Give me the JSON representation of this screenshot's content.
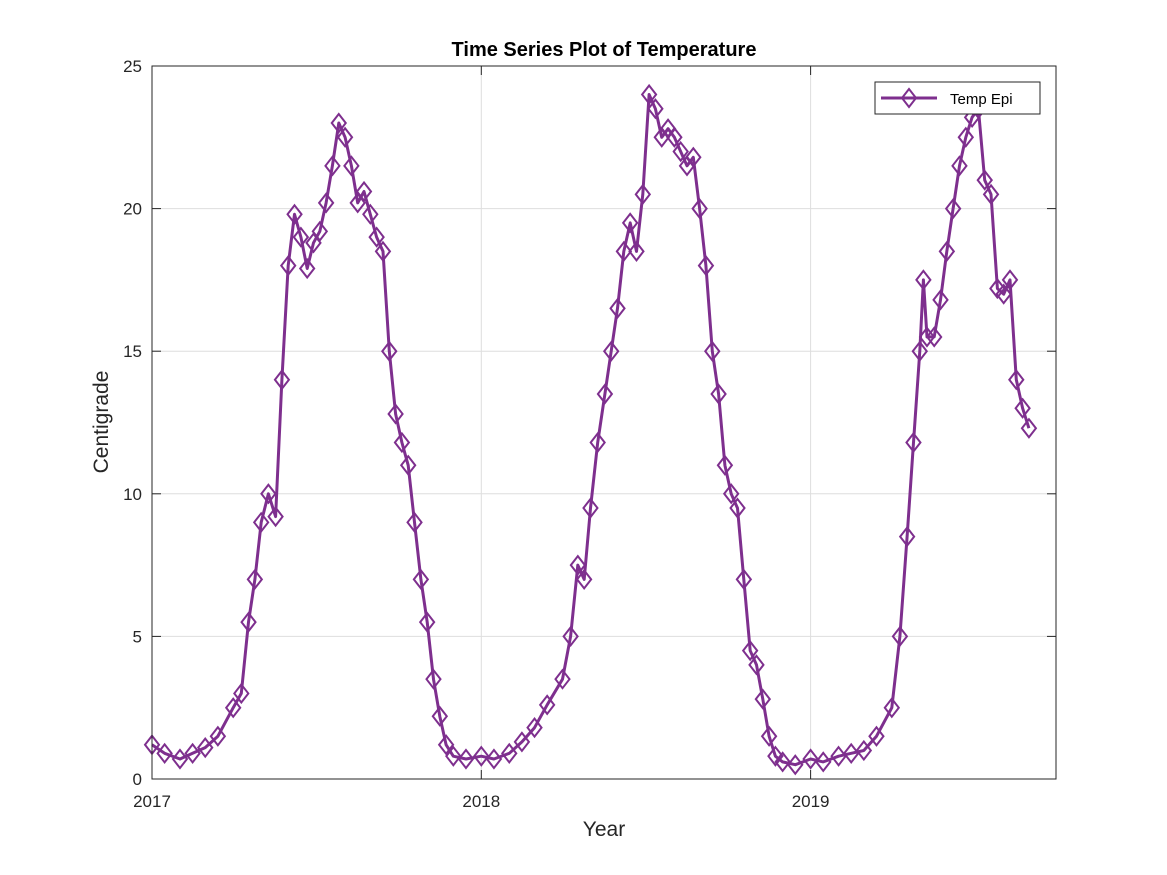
{
  "chart_data": {
    "type": "line",
    "title": "Time Series Plot of Temperature",
    "xlabel": "Year",
    "ylabel": "Centigrade",
    "x_ticks": [
      "2017",
      "2018",
      "2019"
    ],
    "y_ticks": [
      "0",
      "5",
      "10",
      "15",
      "20",
      "25"
    ],
    "xlim": [
      "2017-01-01",
      "2019-09-30"
    ],
    "ylim": [
      0,
      25
    ],
    "grid": true,
    "legend_position": "top-right",
    "marker": "diamond",
    "series": [
      {
        "name": "Temp Epi",
        "color": "#7E2F8E",
        "points": [
          [
            "2017-01-01",
            1.2
          ],
          [
            "2017-01-15",
            0.9
          ],
          [
            "2017-02-01",
            0.7
          ],
          [
            "2017-02-15",
            0.9
          ],
          [
            "2017-03-01",
            1.1
          ],
          [
            "2017-03-15",
            1.5
          ],
          [
            "2017-04-01",
            2.5
          ],
          [
            "2017-04-10",
            3.0
          ],
          [
            "2017-04-18",
            5.5
          ],
          [
            "2017-04-25",
            7.0
          ],
          [
            "2017-05-02",
            9.0
          ],
          [
            "2017-05-10",
            10.0
          ],
          [
            "2017-05-18",
            9.2
          ],
          [
            "2017-05-25",
            14.0
          ],
          [
            "2017-06-01",
            18.0
          ],
          [
            "2017-06-08",
            19.8
          ],
          [
            "2017-06-15",
            19.0
          ],
          [
            "2017-06-22",
            17.9
          ],
          [
            "2017-06-29",
            18.8
          ],
          [
            "2017-07-06",
            19.2
          ],
          [
            "2017-07-13",
            20.2
          ],
          [
            "2017-07-20",
            21.5
          ],
          [
            "2017-07-27",
            23.0
          ],
          [
            "2017-08-03",
            22.5
          ],
          [
            "2017-08-10",
            21.5
          ],
          [
            "2017-08-17",
            20.2
          ],
          [
            "2017-08-24",
            20.6
          ],
          [
            "2017-08-31",
            19.8
          ],
          [
            "2017-09-07",
            19.0
          ],
          [
            "2017-09-14",
            18.5
          ],
          [
            "2017-09-21",
            15.0
          ],
          [
            "2017-09-28",
            12.8
          ],
          [
            "2017-10-05",
            11.8
          ],
          [
            "2017-10-12",
            11.0
          ],
          [
            "2017-10-19",
            9.0
          ],
          [
            "2017-10-26",
            7.0
          ],
          [
            "2017-11-02",
            5.5
          ],
          [
            "2017-11-09",
            3.5
          ],
          [
            "2017-11-16",
            2.2
          ],
          [
            "2017-11-23",
            1.2
          ],
          [
            "2017-12-01",
            0.8
          ],
          [
            "2017-12-15",
            0.7
          ],
          [
            "2018-01-01",
            0.8
          ],
          [
            "2018-01-15",
            0.7
          ],
          [
            "2018-02-01",
            0.9
          ],
          [
            "2018-02-15",
            1.3
          ],
          [
            "2018-03-01",
            1.8
          ],
          [
            "2018-03-15",
            2.6
          ],
          [
            "2018-04-01",
            3.5
          ],
          [
            "2018-04-10",
            5.0
          ],
          [
            "2018-04-18",
            7.5
          ],
          [
            "2018-04-25",
            7.0
          ],
          [
            "2018-05-02",
            9.5
          ],
          [
            "2018-05-10",
            11.8
          ],
          [
            "2018-05-18",
            13.5
          ],
          [
            "2018-05-25",
            15.0
          ],
          [
            "2018-06-01",
            16.5
          ],
          [
            "2018-06-08",
            18.5
          ],
          [
            "2018-06-15",
            19.5
          ],
          [
            "2018-06-22",
            18.5
          ],
          [
            "2018-06-29",
            20.5
          ],
          [
            "2018-07-06",
            24.0
          ],
          [
            "2018-07-13",
            23.5
          ],
          [
            "2018-07-20",
            22.5
          ],
          [
            "2018-07-27",
            22.8
          ],
          [
            "2018-08-03",
            22.5
          ],
          [
            "2018-08-10",
            22.0
          ],
          [
            "2018-08-17",
            21.5
          ],
          [
            "2018-08-24",
            21.8
          ],
          [
            "2018-08-31",
            20.0
          ],
          [
            "2018-09-07",
            18.0
          ],
          [
            "2018-09-14",
            15.0
          ],
          [
            "2018-09-21",
            13.5
          ],
          [
            "2018-09-28",
            11.0
          ],
          [
            "2018-10-05",
            10.0
          ],
          [
            "2018-10-12",
            9.5
          ],
          [
            "2018-10-19",
            7.0
          ],
          [
            "2018-10-26",
            4.5
          ],
          [
            "2018-11-02",
            4.0
          ],
          [
            "2018-11-09",
            2.8
          ],
          [
            "2018-11-16",
            1.5
          ],
          [
            "2018-11-23",
            0.8
          ],
          [
            "2018-12-01",
            0.6
          ],
          [
            "2018-12-15",
            0.5
          ],
          [
            "2019-01-01",
            0.7
          ],
          [
            "2019-01-15",
            0.6
          ],
          [
            "2019-02-01",
            0.8
          ],
          [
            "2019-02-15",
            0.9
          ],
          [
            "2019-03-01",
            1.0
          ],
          [
            "2019-03-15",
            1.5
          ],
          [
            "2019-04-01",
            2.5
          ],
          [
            "2019-04-10",
            5.0
          ],
          [
            "2019-04-18",
            8.5
          ],
          [
            "2019-04-25",
            11.8
          ],
          [
            "2019-05-02",
            15.0
          ],
          [
            "2019-05-06",
            17.5
          ],
          [
            "2019-05-10",
            15.5
          ],
          [
            "2019-05-18",
            15.5
          ],
          [
            "2019-05-25",
            16.8
          ],
          [
            "2019-06-01",
            18.5
          ],
          [
            "2019-06-08",
            20.0
          ],
          [
            "2019-06-15",
            21.5
          ],
          [
            "2019-06-22",
            22.5
          ],
          [
            "2019-06-29",
            23.2
          ],
          [
            "2019-07-06",
            23.5
          ],
          [
            "2019-07-13",
            21.0
          ],
          [
            "2019-07-20",
            20.5
          ],
          [
            "2019-07-27",
            17.2
          ],
          [
            "2019-08-03",
            17.0
          ],
          [
            "2019-08-10",
            17.5
          ],
          [
            "2019-08-17",
            14.0
          ],
          [
            "2019-08-24",
            13.0
          ],
          [
            "2019-08-31",
            12.3
          ]
        ]
      }
    ]
  }
}
